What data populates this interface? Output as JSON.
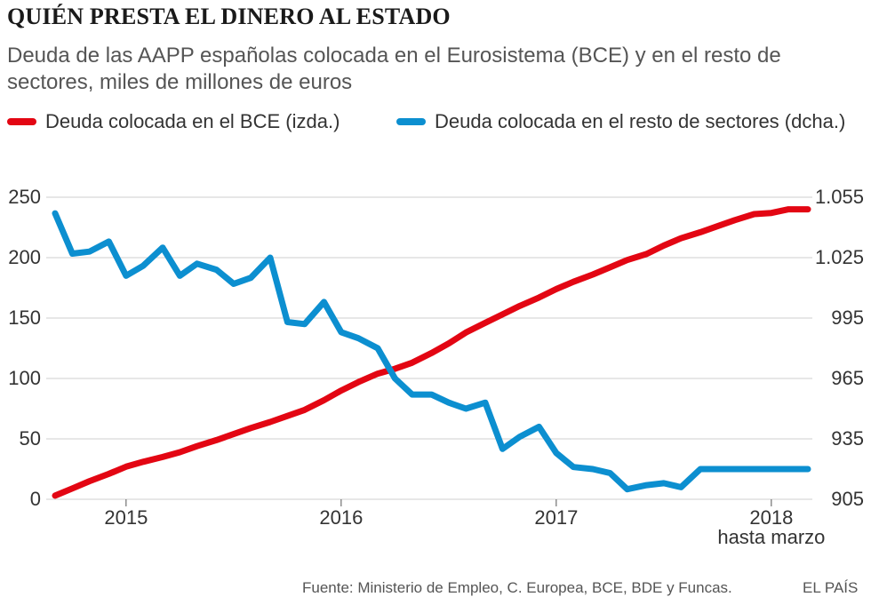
{
  "header": {
    "title": "QUIÉN PRESTA EL DINERO AL ESTADO",
    "subtitle": "Deuda de las AAPP españolas colocada en el Eurosistema (BCE) y en el resto de sectores, miles de millones de euros"
  },
  "footer": {
    "source": "Fuente: Ministerio de Empleo, C. Europea, BCE, BDE y Funcas.",
    "brand": "EL PAÍS"
  },
  "chart_data": {
    "type": "line",
    "title": "QUIÉN PRESTA EL DINERO AL ESTADO",
    "subtitle": "Deuda de las AAPP españolas colocada en el Eurosistema (BCE) y en el resto de sectores, miles de millones de euros",
    "x_tick_labels": [
      "2015",
      "2016",
      "2017",
      "2018"
    ],
    "x_annotation": "hasta marzo",
    "y_left": {
      "ticks": [
        0,
        50,
        100,
        150,
        200,
        250
      ],
      "ylim": [
        0,
        250
      ]
    },
    "y_right": {
      "ticks": [
        "905",
        "935",
        "965",
        "995",
        "1.025",
        "1.055"
      ],
      "ylim": [
        905,
        1055
      ]
    },
    "series": [
      {
        "name": "Deuda colocada en el BCE (izda.)",
        "axis": "left",
        "color": "#e30613",
        "x": [
          2014.67,
          2014.75,
          2014.83,
          2014.92,
          2015.0,
          2015.08,
          2015.17,
          2015.25,
          2015.33,
          2015.42,
          2015.5,
          2015.58,
          2015.67,
          2015.75,
          2015.83,
          2015.92,
          2016.0,
          2016.08,
          2016.17,
          2016.25,
          2016.33,
          2016.42,
          2016.5,
          2016.58,
          2016.67,
          2016.75,
          2016.83,
          2016.92,
          2017.0,
          2017.08,
          2017.17,
          2017.25,
          2017.33,
          2017.42,
          2017.5,
          2017.58,
          2017.67,
          2017.75,
          2017.83,
          2017.92,
          2018.0,
          2018.08,
          2018.17
        ],
        "values": [
          3,
          9,
          15,
          21,
          27,
          31,
          35,
          39,
          44,
          49,
          54,
          59,
          64,
          69,
          74,
          82,
          90,
          97,
          104,
          108,
          113,
          121,
          129,
          138,
          146,
          153,
          160,
          167,
          174,
          180,
          186,
          192,
          198,
          203,
          210,
          216,
          221,
          226,
          231,
          236,
          237,
          240,
          240
        ]
      },
      {
        "name": "Deuda colocada en el resto de sectores (dcha.)",
        "axis": "right",
        "color": "#0c8fd0",
        "x": [
          2014.67,
          2014.75,
          2014.83,
          2014.92,
          2015.0,
          2015.08,
          2015.17,
          2015.25,
          2015.33,
          2015.42,
          2015.5,
          2015.58,
          2015.67,
          2015.75,
          2015.83,
          2015.92,
          2016.0,
          2016.08,
          2016.17,
          2016.25,
          2016.33,
          2016.42,
          2016.5,
          2016.58,
          2016.67,
          2016.75,
          2016.83,
          2016.92,
          2017.0,
          2017.08,
          2017.17,
          2017.25,
          2017.33,
          2017.42,
          2017.5,
          2017.58,
          2017.67,
          2017.75,
          2017.83,
          2017.92,
          2018.0,
          2018.08,
          2018.17
        ],
        "values": [
          1047,
          1027,
          1028,
          1033,
          1016,
          1021,
          1030,
          1016,
          1022,
          1019,
          1012,
          1015,
          1025,
          993,
          992,
          1003,
          988,
          985,
          980,
          965,
          957,
          957,
          953,
          950,
          953,
          930,
          936,
          941,
          928,
          921,
          920,
          918,
          910,
          912,
          913,
          911,
          920,
          920,
          920,
          920,
          920,
          920,
          920
        ]
      }
    ]
  }
}
